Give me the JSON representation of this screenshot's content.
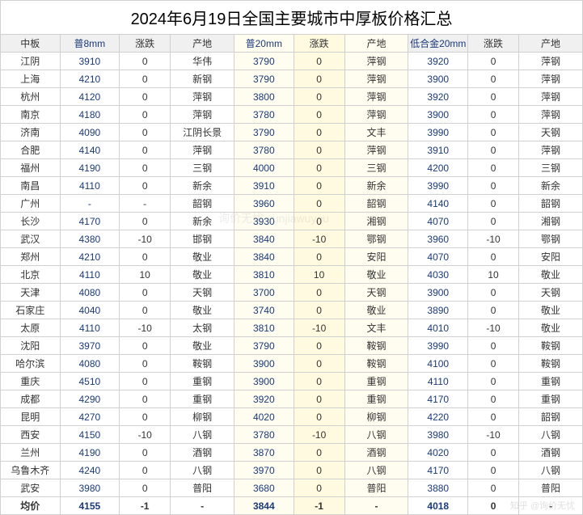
{
  "title": "2024年6月19日全国主要城市中厚板价格汇总",
  "columns": [
    "中板",
    "普8mm",
    "涨跌",
    "产地",
    "普20mm",
    "涨跌",
    "产地",
    "低合金20mm",
    "涨跌",
    "产地"
  ],
  "column_classes": [
    "col-city",
    "col-price",
    "col-change",
    "col-origin",
    "col-price",
    "col-change",
    "col-origin",
    "col-price",
    "col-change",
    "col-origin"
  ],
  "highlight_cols": {
    "4": "hl1",
    "5": "hl2",
    "6": "hl1"
  },
  "rows": [
    [
      "江阴",
      "3910",
      "0",
      "华伟",
      "3790",
      "0",
      "萍钢",
      "3920",
      "0",
      "萍钢"
    ],
    [
      "上海",
      "4210",
      "0",
      "新钢",
      "3790",
      "0",
      "萍钢",
      "3900",
      "0",
      "萍钢"
    ],
    [
      "杭州",
      "4120",
      "0",
      "萍钢",
      "3800",
      "0",
      "萍钢",
      "3920",
      "0",
      "萍钢"
    ],
    [
      "南京",
      "4180",
      "0",
      "萍钢",
      "3780",
      "0",
      "萍钢",
      "3900",
      "0",
      "萍钢"
    ],
    [
      "济南",
      "4090",
      "0",
      "江阴长景",
      "3790",
      "0",
      "文丰",
      "3990",
      "0",
      "天钢"
    ],
    [
      "合肥",
      "4140",
      "0",
      "萍钢",
      "3780",
      "0",
      "萍钢",
      "3910",
      "0",
      "萍钢"
    ],
    [
      "福州",
      "4190",
      "0",
      "三钢",
      "4000",
      "0",
      "三钢",
      "4200",
      "0",
      "三钢"
    ],
    [
      "南昌",
      "4110",
      "0",
      "新余",
      "3910",
      "0",
      "新余",
      "3990",
      "0",
      "新余"
    ],
    [
      "广州",
      "-",
      "-",
      "韶钢",
      "3960",
      "0",
      "韶钢",
      "4140",
      "0",
      "韶钢"
    ],
    [
      "长沙",
      "4170",
      "0",
      "新余",
      "3930",
      "0",
      "湘钢",
      "4070",
      "0",
      "湘钢"
    ],
    [
      "武汉",
      "4380",
      "-10",
      "邯钢",
      "3840",
      "-10",
      "鄂钢",
      "3960",
      "-10",
      "鄂钢"
    ],
    [
      "郑州",
      "4210",
      "0",
      "敬业",
      "3840",
      "0",
      "安阳",
      "4070",
      "0",
      "安阳"
    ],
    [
      "北京",
      "4110",
      "10",
      "敬业",
      "3810",
      "10",
      "敬业",
      "4030",
      "10",
      "敬业"
    ],
    [
      "天津",
      "4080",
      "0",
      "天钢",
      "3700",
      "0",
      "天钢",
      "3900",
      "0",
      "天钢"
    ],
    [
      "石家庄",
      "4040",
      "0",
      "敬业",
      "3740",
      "0",
      "敬业",
      "3890",
      "0",
      "敬业"
    ],
    [
      "太原",
      "4110",
      "-10",
      "太钢",
      "3810",
      "-10",
      "文丰",
      "4010",
      "-10",
      "敬业"
    ],
    [
      "沈阳",
      "3970",
      "0",
      "敬业",
      "3790",
      "0",
      "鞍钢",
      "3990",
      "0",
      "鞍钢"
    ],
    [
      "哈尔滨",
      "4080",
      "0",
      "鞍钢",
      "3900",
      "0",
      "鞍钢",
      "4100",
      "0",
      "鞍钢"
    ],
    [
      "重庆",
      "4510",
      "0",
      "重钢",
      "3900",
      "0",
      "重钢",
      "4110",
      "0",
      "重钢"
    ],
    [
      "成都",
      "4290",
      "0",
      "重钢",
      "3920",
      "0",
      "重钢",
      "4170",
      "0",
      "重钢"
    ],
    [
      "昆明",
      "4270",
      "0",
      "柳钢",
      "4020",
      "0",
      "柳钢",
      "4220",
      "0",
      "韶钢"
    ],
    [
      "西安",
      "4150",
      "-10",
      "八钢",
      "3780",
      "-10",
      "八钢",
      "3980",
      "-10",
      "八钢"
    ],
    [
      "兰州",
      "4190",
      "0",
      "酒钢",
      "3870",
      "0",
      "酒钢",
      "4020",
      "0",
      "酒钢"
    ],
    [
      "乌鲁木齐",
      "4240",
      "0",
      "八钢",
      "3970",
      "0",
      "八钢",
      "4170",
      "0",
      "八钢"
    ],
    [
      "武安",
      "3980",
      "0",
      "普阳",
      "3680",
      "0",
      "普阳",
      "3880",
      "0",
      "普阳"
    ],
    [
      "均价",
      "4155",
      "-1",
      "-",
      "3844",
      "-1",
      "-",
      "4018",
      "0",
      "-"
    ]
  ],
  "watermark_text": "询价无忧 xunjiawuyou",
  "footer_text": "知乎 @询价无忧",
  "colors": {
    "border": "#d0d0d0",
    "header_bg": "#f0f0f0",
    "price_text": "#1a3a7a",
    "hl1": "#fffdf0",
    "hl2": "#fffae0"
  }
}
